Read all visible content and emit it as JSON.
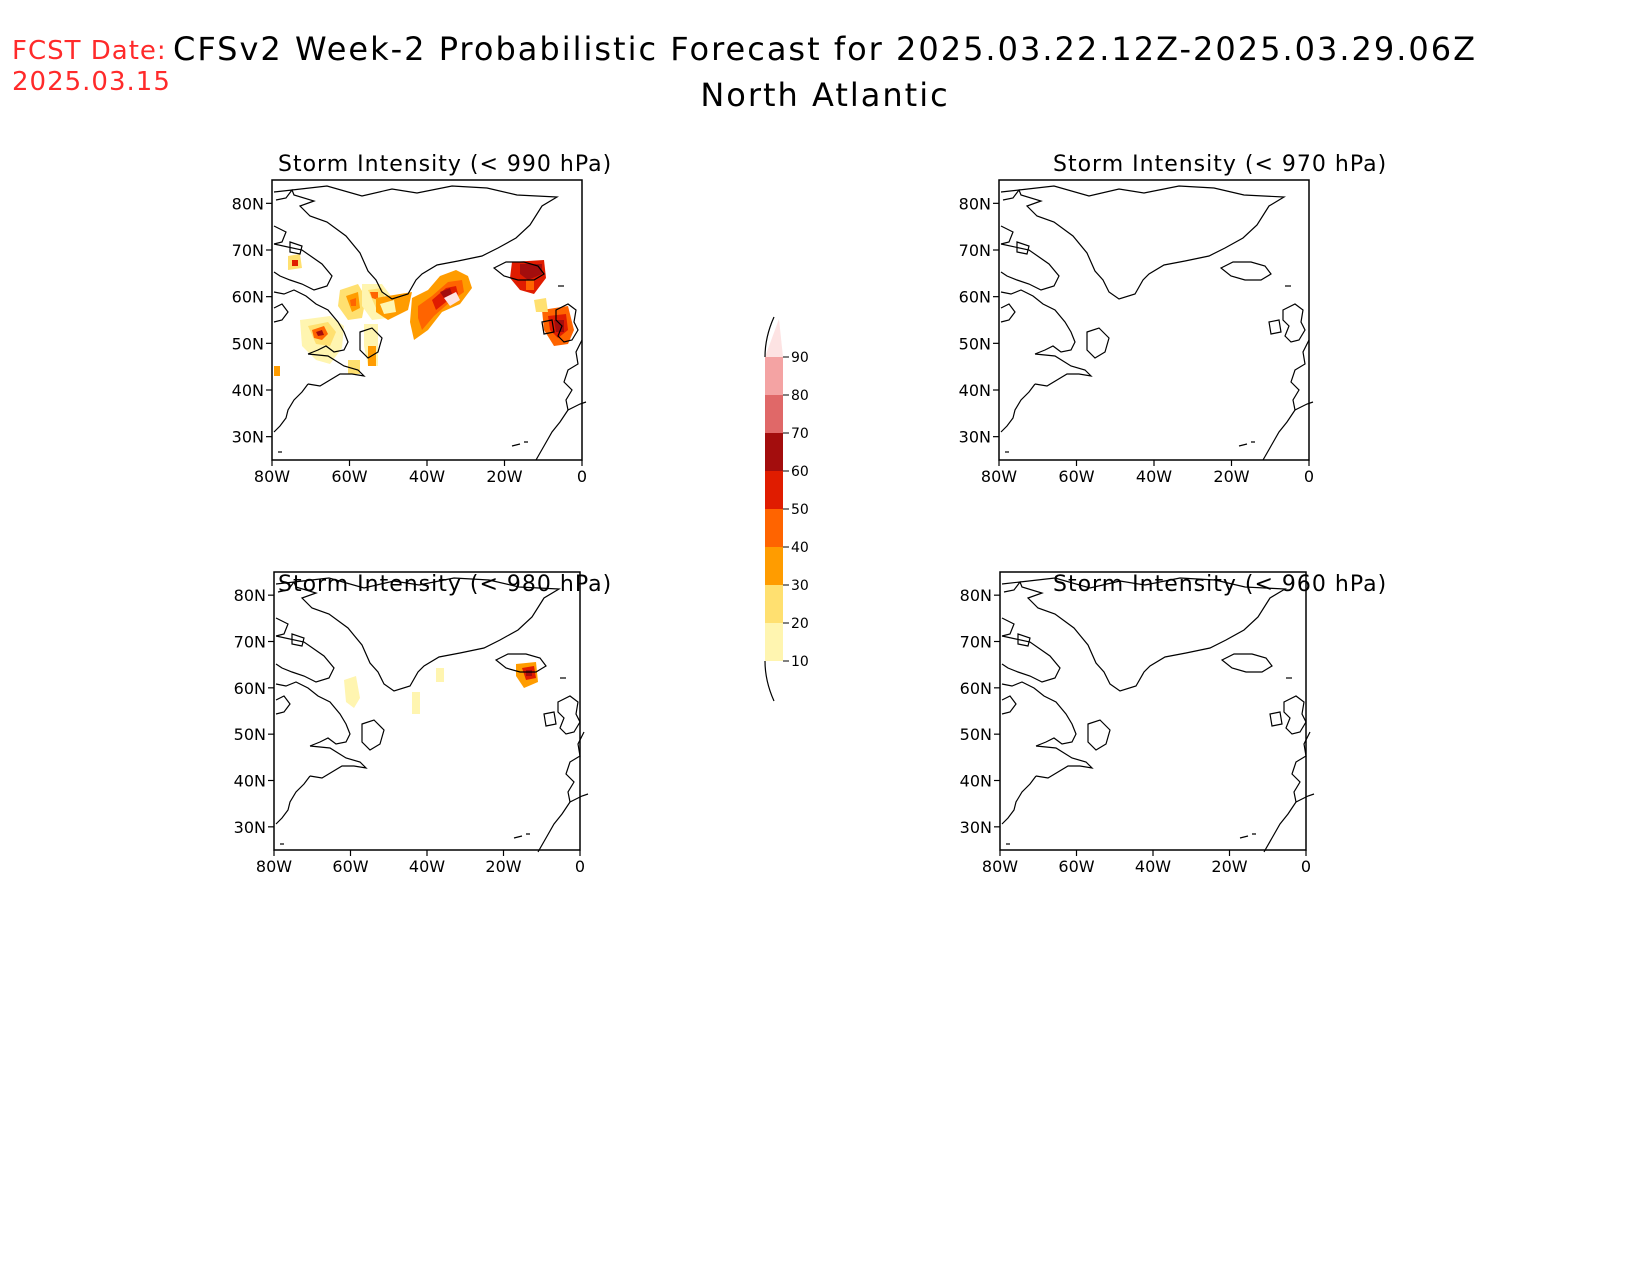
{
  "header": {
    "fcst_label": "FCST Date:",
    "fcst_date": "2025.03.15",
    "title": "CFSv2 Week-2 Probabilistic Forecast for 2025.03.22.12Z-2025.03.29.06Z",
    "subtitle": "North Atlantic"
  },
  "axes": {
    "lat_labels": [
      "80N",
      "70N",
      "60N",
      "50N",
      "40N",
      "30N"
    ],
    "lon_labels": [
      "80W",
      "60W",
      "40W",
      "20W",
      "0"
    ]
  },
  "panels": [
    {
      "id": "p990",
      "title": "Storm Intensity (< 990 hPa)"
    },
    {
      "id": "p970",
      "title": "Storm Intensity (< 970 hPa)"
    },
    {
      "id": "p980",
      "title": "Storm Intensity (< 980 hPa)"
    },
    {
      "id": "p960",
      "title": "Storm Intensity (< 960 hPa)"
    }
  ],
  "colorbar": {
    "labels": [
      "90",
      "80",
      "70",
      "60",
      "50",
      "40",
      "30",
      "20",
      "10"
    ],
    "colors": [
      "#fde3e3",
      "#f4a3a3",
      "#e06868",
      "#a30d0d",
      "#e01c00",
      "#ff6400",
      "#ff9c00",
      "#ffe070",
      "#fff5b0"
    ]
  },
  "colors": {
    "fcst_text": "#ff2a2a",
    "coastline": "#000000"
  }
}
